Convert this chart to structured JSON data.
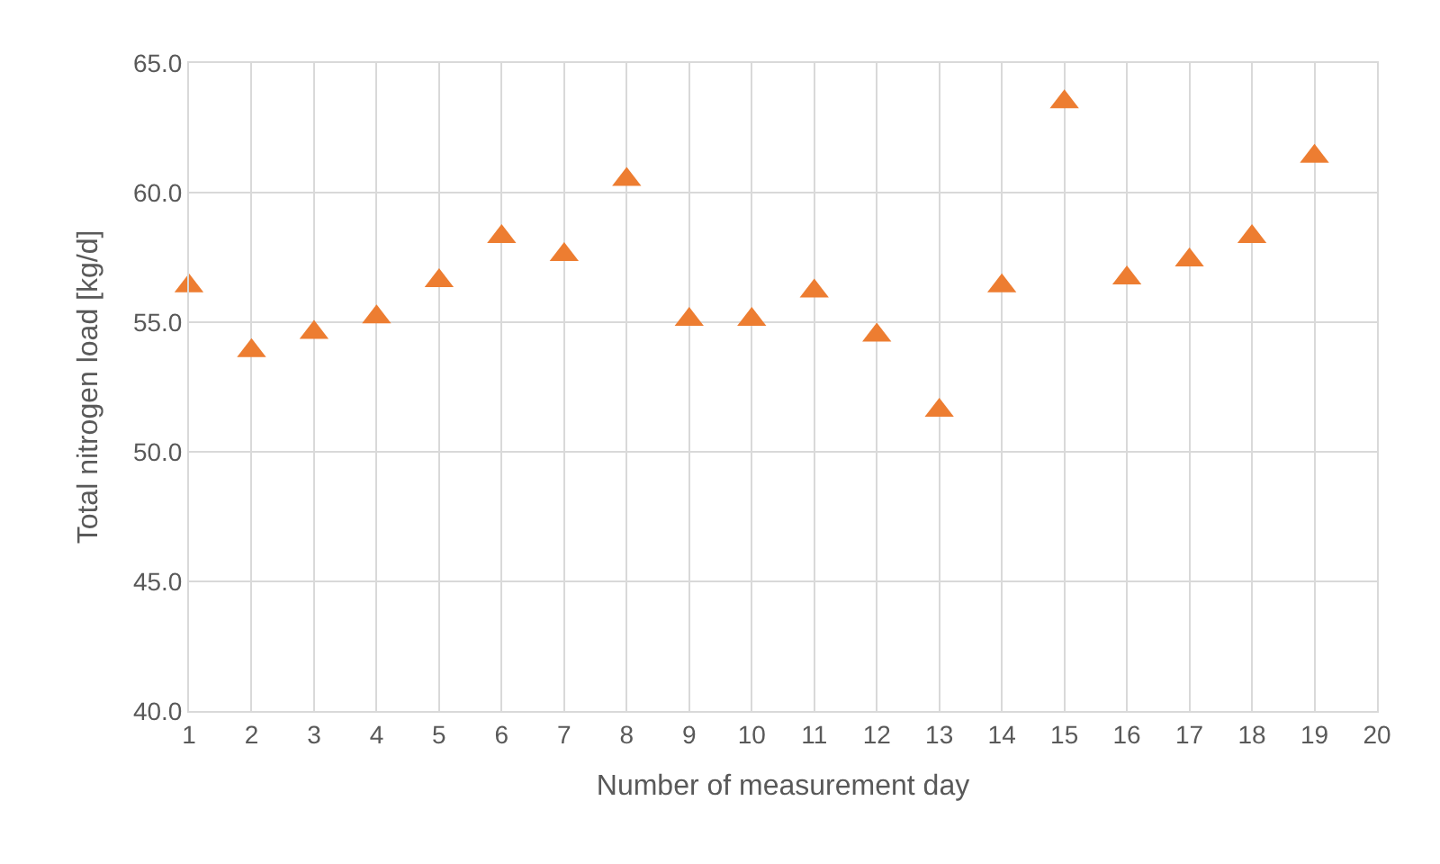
{
  "chart_data": {
    "type": "scatter",
    "xlabel": "Number of measurement day",
    "ylabel": "Total nitrogen load [kg/d]",
    "x": [
      1,
      2,
      3,
      4,
      5,
      6,
      7,
      8,
      9,
      10,
      11,
      12,
      13,
      14,
      15,
      16,
      17,
      18,
      19
    ],
    "series": [
      {
        "color": "#ed7d31",
        "values": [
          56.4,
          53.9,
          54.6,
          55.2,
          56.6,
          58.3,
          57.6,
          60.5,
          55.1,
          55.1,
          56.2,
          54.5,
          51.6,
          56.4,
          63.5,
          56.7,
          57.4,
          58.3,
          61.4
        ]
      }
    ],
    "xlim": [
      1,
      20
    ],
    "xticks": [
      1,
      2,
      3,
      4,
      5,
      6,
      7,
      8,
      9,
      10,
      11,
      12,
      13,
      14,
      15,
      16,
      17,
      18,
      19,
      20
    ],
    "ylim": [
      40,
      65
    ],
    "yticks": [
      {
        "value": 40,
        "label": "40.0"
      },
      {
        "value": 45,
        "label": "45.0"
      },
      {
        "value": 50,
        "label": "50.0"
      },
      {
        "value": 55,
        "label": "55.0"
      },
      {
        "value": 60,
        "label": "60.0"
      },
      {
        "value": 65,
        "label": "65.0"
      }
    ],
    "grid": true,
    "marker": "triangle",
    "legend": false
  }
}
